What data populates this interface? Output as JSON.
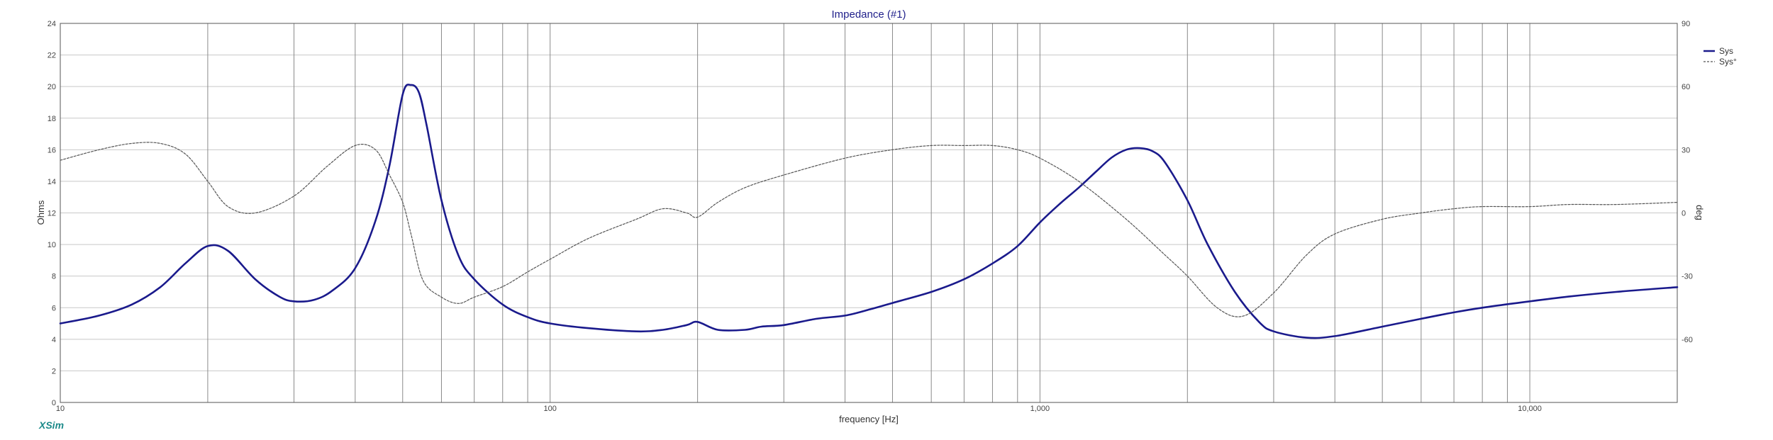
{
  "brand": "XSim",
  "chart_data": {
    "type": "line",
    "title": "Impedance (#1)",
    "xlabel": "frequency [Hz]",
    "ylabel": "Ohms",
    "y2label": "deg",
    "x_scale": "log",
    "xlim": [
      10,
      20000
    ],
    "ylim": [
      0,
      24
    ],
    "y2lim": [
      -90,
      90
    ],
    "grid": true,
    "legend_position": "top-right",
    "x_ticks": [
      {
        "value": 10,
        "label": "10"
      },
      {
        "value": 100,
        "label": "100"
      },
      {
        "value": 1000,
        "label": "1,000"
      },
      {
        "value": 10000,
        "label": "10,000"
      }
    ],
    "x_minor_grid": [
      20,
      30,
      40,
      50,
      60,
      70,
      80,
      90,
      200,
      300,
      400,
      500,
      600,
      700,
      800,
      900,
      2000,
      3000,
      4000,
      5000,
      6000,
      7000,
      8000,
      9000
    ],
    "y_ticks": [
      0,
      2,
      4,
      6,
      8,
      10,
      12,
      14,
      16,
      18,
      20,
      22,
      24
    ],
    "y2_ticks": [
      -60,
      -30,
      0,
      30,
      60,
      90
    ],
    "series": [
      {
        "name": "Sys",
        "axis": "left",
        "style": "solid",
        "color": "#1a1a8c",
        "x": [
          10,
          12,
          14,
          16,
          18,
          20,
          22,
          25,
          28,
          30,
          33,
          36,
          40,
          44,
          47,
          50,
          52,
          54,
          56,
          60,
          65,
          70,
          80,
          90,
          100,
          120,
          150,
          170,
          190,
          200,
          220,
          250,
          270,
          300,
          350,
          400,
          450,
          500,
          600,
          700,
          800,
          900,
          1000,
          1100,
          1200,
          1300,
          1400,
          1500,
          1600,
          1700,
          1800,
          2000,
          2200,
          2500,
          2800,
          3000,
          3500,
          4000,
          5000,
          6000,
          7000,
          8000,
          10000,
          12000,
          15000,
          20000
        ],
        "y": [
          5.0,
          5.5,
          6.2,
          7.3,
          8.8,
          9.9,
          9.6,
          7.8,
          6.7,
          6.4,
          6.5,
          7.1,
          8.5,
          11.5,
          15.0,
          19.5,
          20.1,
          19.6,
          17.5,
          12.8,
          9.3,
          7.8,
          6.2,
          5.4,
          5.0,
          4.7,
          4.5,
          4.6,
          4.9,
          5.1,
          4.6,
          4.6,
          4.8,
          4.9,
          5.3,
          5.5,
          5.9,
          6.3,
          7.0,
          7.8,
          8.8,
          9.9,
          11.4,
          12.6,
          13.6,
          14.6,
          15.5,
          16.0,
          16.1,
          15.9,
          15.2,
          12.8,
          10.0,
          7.0,
          5.1,
          4.5,
          4.1,
          4.2,
          4.8,
          5.3,
          5.7,
          6.0,
          6.4,
          6.7,
          7.0,
          7.3
        ]
      },
      {
        "name": "Sys°",
        "axis": "right",
        "style": "dashed",
        "color": "#555555",
        "x": [
          10,
          12,
          14,
          16,
          18,
          20,
          22,
          25,
          30,
          35,
          40,
          44,
          47,
          50,
          52,
          55,
          60,
          65,
          70,
          80,
          90,
          100,
          120,
          150,
          170,
          190,
          200,
          220,
          250,
          300,
          400,
          500,
          600,
          700,
          800,
          900,
          1000,
          1200,
          1500,
          1800,
          2000,
          2300,
          2600,
          3000,
          3500,
          4000,
          5000,
          6000,
          7000,
          8000,
          10000,
          12000,
          15000,
          20000
        ],
        "y": [
          25,
          30,
          33,
          33,
          28,
          15,
          3,
          0,
          8,
          22,
          32,
          30,
          18,
          5,
          -10,
          -32,
          -40,
          -43,
          -40,
          -35,
          -28,
          -22,
          -12,
          -3,
          2,
          0,
          -2,
          5,
          12,
          18,
          26,
          30,
          32,
          32,
          32,
          30,
          26,
          15,
          -3,
          -20,
          -30,
          -45,
          -49,
          -38,
          -20,
          -10,
          -3,
          0,
          2,
          3,
          3,
          4,
          4,
          5
        ]
      }
    ]
  }
}
